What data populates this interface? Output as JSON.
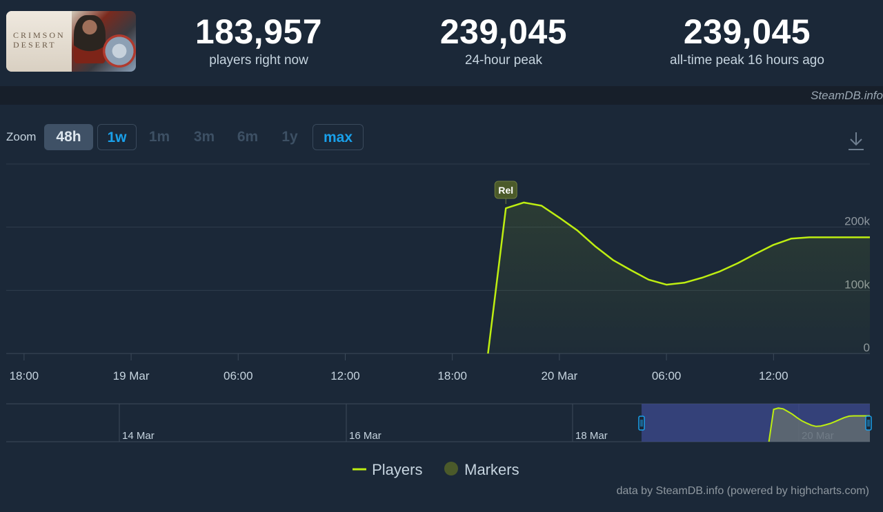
{
  "header": {
    "game_cover": {
      "alt_text": "Crimson Desert cover art",
      "title_text": "CRIMSON DESERT"
    },
    "stats": [
      {
        "value": "183,957",
        "label": "players right now"
      },
      {
        "value": "239,045",
        "label": "24-hour peak"
      },
      {
        "value": "239,045",
        "label": "all-time peak 16 hours ago"
      }
    ]
  },
  "watermark": "SteamDB.info",
  "zoom": {
    "label": "Zoom",
    "buttons": [
      {
        "label": "48h",
        "state": "active"
      },
      {
        "label": "1w",
        "state": "enabled"
      },
      {
        "label": "1m",
        "state": "disabled"
      },
      {
        "label": "3m",
        "state": "disabled"
      },
      {
        "label": "6m",
        "state": "disabled"
      },
      {
        "label": "1y",
        "state": "disabled"
      },
      {
        "label": "max",
        "state": "enabled"
      }
    ]
  },
  "download_icon": "download-icon",
  "chart_data": {
    "type": "area",
    "x_axis": {
      "tick_labels": [
        "18:00",
        "19 Mar",
        "06:00",
        "12:00",
        "18:00",
        "20 Mar",
        "06:00",
        "12:00"
      ],
      "range_hours": [
        -1,
        47.4
      ]
    },
    "y_axis": {
      "tick_labels": [
        "0",
        "100k",
        "200k"
      ],
      "ylim": [
        0,
        300000
      ]
    },
    "series": [
      {
        "name": "Players",
        "color": "#beee11",
        "points": [
          {
            "x": 26,
            "y": 0
          },
          {
            "x": 27,
            "y": 230000
          },
          {
            "x": 28,
            "y": 239045
          },
          {
            "x": 29,
            "y": 234000
          },
          {
            "x": 30,
            "y": 215000
          },
          {
            "x": 31,
            "y": 195000
          },
          {
            "x": 32,
            "y": 170000
          },
          {
            "x": 33,
            "y": 148000
          },
          {
            "x": 34,
            "y": 132000
          },
          {
            "x": 35,
            "y": 117000
          },
          {
            "x": 36,
            "y": 109000
          },
          {
            "x": 37,
            "y": 112000
          },
          {
            "x": 38,
            "y": 120000
          },
          {
            "x": 39,
            "y": 130000
          },
          {
            "x": 40,
            "y": 143000
          },
          {
            "x": 41,
            "y": 158000
          },
          {
            "x": 42,
            "y": 172000
          },
          {
            "x": 43,
            "y": 182000
          },
          {
            "x": 44,
            "y": 183957
          }
        ]
      }
    ],
    "markers": [
      {
        "label": "Rel",
        "x": 27
      }
    ],
    "navigator": {
      "tick_labels": [
        "14 Mar",
        "16 Mar",
        "18 Mar",
        "20 Mar"
      ],
      "selected_range": "last 48h"
    },
    "legend": {
      "placement": "bottom-center",
      "items": [
        {
          "name": "Players",
          "color": "#beee11"
        },
        {
          "name": "Markers",
          "color": "#4b5a2a"
        }
      ]
    },
    "grid": true
  },
  "credits": "data by SteamDB.info (powered by highcharts.com)"
}
